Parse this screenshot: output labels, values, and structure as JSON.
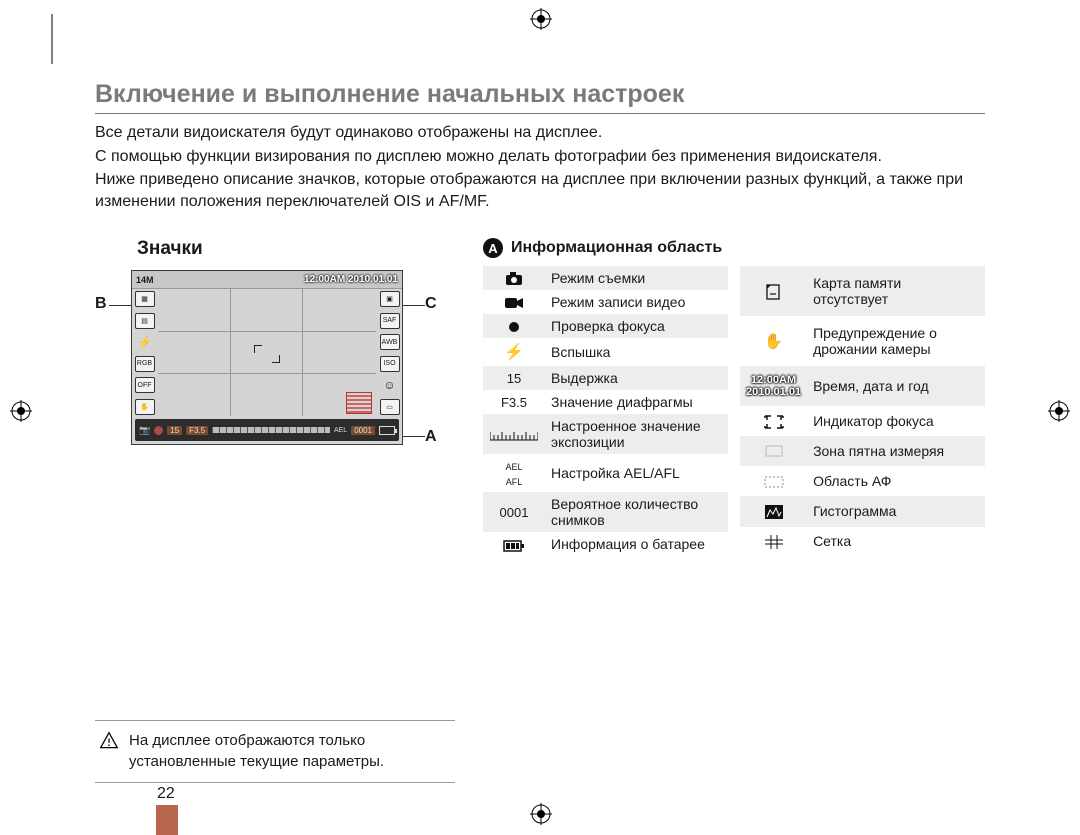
{
  "title": "Включение и выполнение начальных настроек",
  "intro": [
    "Все детали видоискателя будут одинаково отображены на дисплее.",
    "С помощью функции визирования по дисплею можно делать фотографии без применения видоискателя.",
    "Ниже приведено описание значков, которые отображаются на дисплее при включении разных функций, а также при изменении положения переключателей  OIS и AF/MF."
  ],
  "left_heading": "Значки",
  "labels": {
    "A": "A",
    "B": "B",
    "C": "C"
  },
  "viewfinder": {
    "res": "14M",
    "timestamp": "12:00AM  2010.01.01",
    "shutter": "15",
    "aperture": "F3.5",
    "frame": "0001"
  },
  "note": "На дисплее отображаются только установленные текущие параметры.",
  "section_badge": "A",
  "section_title": "Информационная область",
  "table_left": [
    {
      "icon": "camera",
      "label": "Режим съемки",
      "alt": true
    },
    {
      "icon": "video",
      "label": "Режим записи видео",
      "alt": false
    },
    {
      "icon": "dot",
      "label": "Проверка фокуса",
      "alt": true
    },
    {
      "icon": "flash",
      "label": "Вспышка",
      "alt": false
    },
    {
      "icon": "t15",
      "label": "Выдержка",
      "alt": true
    },
    {
      "icon": "tF35",
      "label": "Значение диафрагмы",
      "alt": false
    },
    {
      "icon": "scale",
      "label": "Настроенное значение экспозиции",
      "alt": true
    },
    {
      "icon": "ael",
      "label": "Настройка AEL/AFL",
      "alt": false
    },
    {
      "icon": "t0001",
      "label": "Вероятное количество снимков",
      "alt": true
    },
    {
      "icon": "battery",
      "label": "Информация о батарее",
      "alt": false
    }
  ],
  "table_right": [
    {
      "icon": "nocard",
      "label": "Карта памяти отсутствует",
      "alt": true
    },
    {
      "icon": "hand",
      "label": "Предупреждение о дрожании камеры",
      "alt": false
    },
    {
      "icon": "tstamp",
      "label": "Время, дата и год",
      "alt": true
    },
    {
      "icon": "brackets",
      "label": "Индикатор фокуса",
      "alt": false
    },
    {
      "icon": "brkthin",
      "label": "Зона пятна измеряя",
      "alt": true
    },
    {
      "icon": "dashed",
      "label": "Область АФ",
      "alt": false
    },
    {
      "icon": "histo",
      "label": "Гистограмма",
      "alt": true
    },
    {
      "icon": "grid",
      "label": "Сетка",
      "alt": false
    }
  ],
  "tstamp_lines": [
    "12:00AM",
    "2010.01.01"
  ],
  "page_number": "22",
  "colors": {
    "title": "#7a7a7a",
    "accent": "#b8664d",
    "row_alt": "#ededed"
  }
}
